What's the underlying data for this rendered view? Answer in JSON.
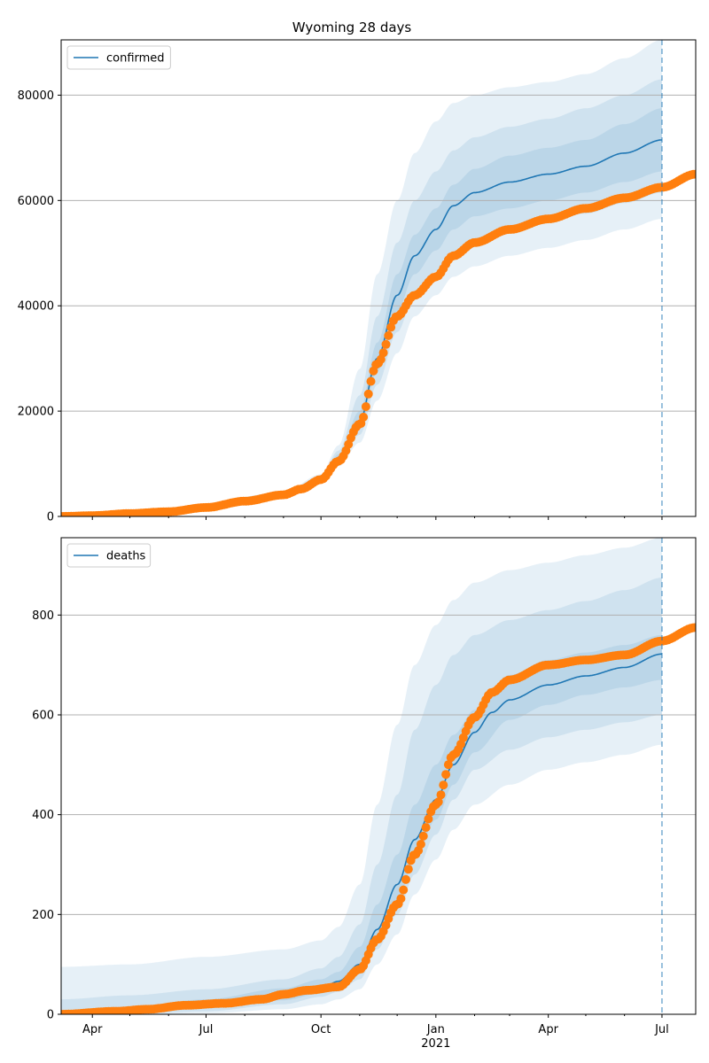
{
  "title": "Wyoming 28 days",
  "colors": {
    "model": "#1f77b4",
    "observed": "#ff7f0e",
    "band": "#1f77b4",
    "grid": "#b0b0b0"
  },
  "x_ticks": [
    {
      "label": "Apr",
      "month": 3.0
    },
    {
      "label": "Jul",
      "month": 6.0
    },
    {
      "label": "Oct",
      "month": 9.0
    },
    {
      "label": "Jan",
      "month": 12.0
    },
    {
      "label": "Apr",
      "month": 15.0
    },
    {
      "label": "Jul",
      "month": 18.0
    }
  ],
  "x_year_label": "2021",
  "chart_data": [
    {
      "type": "line",
      "name": "confirmed",
      "legend": "confirmed",
      "xlim": [
        "2020-03-07",
        "2021-07-28"
      ],
      "ylim": [
        0,
        90500
      ],
      "yticks": [
        0,
        20000,
        40000,
        60000,
        80000
      ],
      "grid": "horizontal",
      "legend_position": "top-left",
      "vline": "2021-07-01",
      "series": [
        {
          "name": "confirmed",
          "kind": "model_median",
          "points": [
            [
              "2020-03-07",
              0
            ],
            [
              "2020-05-01",
              500
            ],
            [
              "2020-06-01",
              1000
            ],
            [
              "2020-07-01",
              1800
            ],
            [
              "2020-08-01",
              3000
            ],
            [
              "2020-09-01",
              4200
            ],
            [
              "2020-09-15",
              5500
            ],
            [
              "2020-10-01",
              7300
            ],
            [
              "2020-10-15",
              11000
            ],
            [
              "2020-11-01",
              18000
            ],
            [
              "2020-11-15",
              30000
            ],
            [
              "2020-12-01",
              42000
            ],
            [
              "2020-12-15",
              49500
            ],
            [
              "2021-01-01",
              54500
            ],
            [
              "2021-01-15",
              59000
            ],
            [
              "2021-02-01",
              61500
            ],
            [
              "2021-03-01",
              63500
            ],
            [
              "2021-04-01",
              65000
            ],
            [
              "2021-05-01",
              66500
            ],
            [
              "2021-06-01",
              69000
            ],
            [
              "2021-07-01",
              71500
            ]
          ]
        },
        {
          "name": "observed confirmed",
          "kind": "observed",
          "points": [
            [
              "2020-03-07",
              0
            ],
            [
              "2020-04-01",
              150
            ],
            [
              "2020-05-01",
              550
            ],
            [
              "2020-06-01",
              900
            ],
            [
              "2020-07-01",
              1700
            ],
            [
              "2020-08-01",
              2900
            ],
            [
              "2020-09-01",
              4100
            ],
            [
              "2020-09-15",
              5200
            ],
            [
              "2020-10-01",
              7000
            ],
            [
              "2020-10-15",
              10500
            ],
            [
              "2020-11-01",
              17500
            ],
            [
              "2020-11-15",
              29000
            ],
            [
              "2020-12-01",
              38000
            ],
            [
              "2020-12-15",
              42000
            ],
            [
              "2021-01-01",
              45500
            ],
            [
              "2021-01-15",
              49500
            ],
            [
              "2021-02-01",
              52000
            ],
            [
              "2021-03-01",
              54500
            ],
            [
              "2021-04-01",
              56500
            ],
            [
              "2021-05-01",
              58500
            ],
            [
              "2021-06-01",
              60500
            ],
            [
              "2021-07-01",
              62500
            ],
            [
              "2021-07-28",
              65000
            ]
          ]
        }
      ],
      "bands": [
        {
          "level": "outer",
          "points": [
            [
              "2020-03-07",
              0,
              0
            ],
            [
              "2020-06-01",
              900,
              1100
            ],
            [
              "2020-09-01",
              3800,
              4600
            ],
            [
              "2020-10-01",
              6800,
              8000
            ],
            [
              "2020-10-15",
              9500,
              13500
            ],
            [
              "2020-11-01",
              14000,
              28000
            ],
            [
              "2020-11-15",
              22000,
              46000
            ],
            [
              "2020-12-01",
              31000,
              60000
            ],
            [
              "2020-12-15",
              38000,
              69000
            ],
            [
              "2021-01-01",
              42000,
              75000
            ],
            [
              "2021-01-15",
              45500,
              78500
            ],
            [
              "2021-02-01",
              47500,
              80000
            ],
            [
              "2021-03-01",
              49500,
              81500
            ],
            [
              "2021-04-01",
              51000,
              82500
            ],
            [
              "2021-05-01",
              52500,
              84000
            ],
            [
              "2021-06-01",
              54500,
              87000
            ],
            [
              "2021-07-01",
              56500,
              90500
            ]
          ]
        },
        {
          "level": "middle",
          "points": [
            [
              "2020-03-07",
              0,
              0
            ],
            [
              "2020-06-01",
              950,
              1050
            ],
            [
              "2020-09-01",
              4000,
              4400
            ],
            [
              "2020-10-01",
              7000,
              7700
            ],
            [
              "2020-10-15",
              10000,
              12500
            ],
            [
              "2020-11-01",
              15500,
              23000
            ],
            [
              "2020-11-15",
              25000,
              38000
            ],
            [
              "2020-12-01",
              35000,
              52000
            ],
            [
              "2020-12-15",
              42000,
              60000
            ],
            [
              "2021-01-01",
              46500,
              65500
            ],
            [
              "2021-01-15",
              50000,
              69500
            ],
            [
              "2021-02-01",
              52500,
              72000
            ],
            [
              "2021-03-01",
              54500,
              74000
            ],
            [
              "2021-04-01",
              56000,
              75500
            ],
            [
              "2021-05-01",
              57500,
              77500
            ],
            [
              "2021-06-01",
              59500,
              80000
            ],
            [
              "2021-07-01",
              61500,
              83000
            ]
          ]
        },
        {
          "level": "inner",
          "points": [
            [
              "2020-03-07",
              0,
              0
            ],
            [
              "2020-06-01",
              980,
              1020
            ],
            [
              "2020-09-01",
              4100,
              4300
            ],
            [
              "2020-10-01",
              7100,
              7500
            ],
            [
              "2020-10-15",
              10500,
              11800
            ],
            [
              "2020-11-01",
              16800,
              20000
            ],
            [
              "2020-11-15",
              27500,
              33000
            ],
            [
              "2020-12-01",
              39000,
              46000
            ],
            [
              "2020-12-15",
              46000,
              53500
            ],
            [
              "2021-01-01",
              50500,
              58500
            ],
            [
              "2021-01-15",
              54500,
              63000
            ],
            [
              "2021-02-01",
              57000,
              66000
            ],
            [
              "2021-03-01",
              58500,
              68500
            ],
            [
              "2021-04-01",
              60000,
              70000
            ],
            [
              "2021-05-01",
              61500,
              71500
            ],
            [
              "2021-06-01",
              63500,
              74500
            ],
            [
              "2021-07-01",
              65500,
              77500
            ]
          ]
        }
      ]
    },
    {
      "type": "line",
      "name": "deaths",
      "legend": "deaths",
      "xlim": [
        "2020-03-07",
        "2021-07-28"
      ],
      "ylim": [
        0,
        955
      ],
      "yticks": [
        0,
        200,
        400,
        600,
        800
      ],
      "grid": "horizontal",
      "legend_position": "top-left",
      "vline": "2021-07-01",
      "series": [
        {
          "name": "deaths",
          "kind": "model_median",
          "points": [
            [
              "2020-03-07",
              0
            ],
            [
              "2020-04-15",
              5
            ],
            [
              "2020-06-01",
              15
            ],
            [
              "2020-07-01",
              20
            ],
            [
              "2020-08-01",
              27
            ],
            [
              "2020-09-01",
              38
            ],
            [
              "2020-10-01",
              52
            ],
            [
              "2020-10-15",
              66
            ],
            [
              "2020-11-01",
              100
            ],
            [
              "2020-11-15",
              170
            ],
            [
              "2020-12-01",
              260
            ],
            [
              "2020-12-15",
              350
            ],
            [
              "2021-01-01",
              430
            ],
            [
              "2021-01-15",
              500
            ],
            [
              "2021-02-01",
              565
            ],
            [
              "2021-02-15",
              605
            ],
            [
              "2021-03-01",
              630
            ],
            [
              "2021-04-01",
              660
            ],
            [
              "2021-05-01",
              678
            ],
            [
              "2021-06-01",
              695
            ],
            [
              "2021-07-01",
              722
            ]
          ]
        },
        {
          "name": "observed deaths",
          "kind": "observed",
          "points": [
            [
              "2020-03-07",
              0
            ],
            [
              "2020-04-20",
              6
            ],
            [
              "2020-05-15",
              10
            ],
            [
              "2020-06-15",
              18
            ],
            [
              "2020-07-15",
              22
            ],
            [
              "2020-08-15",
              30
            ],
            [
              "2020-09-01",
              40
            ],
            [
              "2020-09-20",
              48
            ],
            [
              "2020-10-15",
              55
            ],
            [
              "2020-11-01",
              90
            ],
            [
              "2020-11-15",
              150
            ],
            [
              "2020-12-01",
              220
            ],
            [
              "2020-12-15",
              320
            ],
            [
              "2021-01-01",
              420
            ],
            [
              "2021-01-15",
              520
            ],
            [
              "2021-02-01",
              595
            ],
            [
              "2021-02-15",
              645
            ],
            [
              "2021-03-01",
              670
            ],
            [
              "2021-04-01",
              700
            ],
            [
              "2021-05-01",
              710
            ],
            [
              "2021-06-01",
              720
            ],
            [
              "2021-07-01",
              748
            ],
            [
              "2021-07-28",
              775
            ]
          ]
        }
      ],
      "bands": [
        {
          "level": "outer",
          "points": [
            [
              "2020-03-07",
              0,
              95
            ],
            [
              "2020-05-01",
              0,
              100
            ],
            [
              "2020-07-01",
              2,
              115
            ],
            [
              "2020-09-01",
              10,
              130
            ],
            [
              "2020-10-01",
              20,
              148
            ],
            [
              "2020-10-15",
              30,
              175
            ],
            [
              "2020-11-01",
              50,
              260
            ],
            [
              "2020-11-15",
              100,
              420
            ],
            [
              "2020-12-01",
              160,
              580
            ],
            [
              "2020-12-15",
              240,
              700
            ],
            [
              "2021-01-01",
              310,
              780
            ],
            [
              "2021-01-15",
              370,
              830
            ],
            [
              "2021-02-01",
              420,
              865
            ],
            [
              "2021-03-01",
              460,
              890
            ],
            [
              "2021-04-01",
              490,
              905
            ],
            [
              "2021-05-01",
              505,
              920
            ],
            [
              "2021-06-01",
              520,
              935
            ],
            [
              "2021-07-01",
              540,
              955
            ]
          ]
        },
        {
          "level": "middle",
          "points": [
            [
              "2020-03-07",
              0,
              30
            ],
            [
              "2020-05-01",
              0,
              38
            ],
            [
              "2020-07-01",
              6,
              50
            ],
            [
              "2020-09-01",
              20,
              70
            ],
            [
              "2020-10-01",
              35,
              92
            ],
            [
              "2020-10-15",
              45,
              115
            ],
            [
              "2020-11-01",
              70,
              180
            ],
            [
              "2020-11-15",
              130,
              300
            ],
            [
              "2020-12-01",
              200,
              440
            ],
            [
              "2020-12-15",
              280,
              570
            ],
            [
              "2021-01-01",
              360,
              660
            ],
            [
              "2021-01-15",
              430,
              720
            ],
            [
              "2021-02-01",
              490,
              760
            ],
            [
              "2021-03-01",
              530,
              790
            ],
            [
              "2021-04-01",
              555,
              810
            ],
            [
              "2021-05-01",
              570,
              828
            ],
            [
              "2021-06-01",
              585,
              850
            ],
            [
              "2021-07-01",
              600,
              875
            ]
          ]
        },
        {
          "level": "inner",
          "points": [
            [
              "2020-03-07",
              0,
              8
            ],
            [
              "2020-05-01",
              2,
              14
            ],
            [
              "2020-07-01",
              12,
              30
            ],
            [
              "2020-09-01",
              28,
              52
            ],
            [
              "2020-10-01",
              42,
              70
            ],
            [
              "2020-10-15",
              55,
              85
            ],
            [
              "2020-11-01",
              82,
              135
            ],
            [
              "2020-11-15",
              145,
              220
            ],
            [
              "2020-12-01",
              225,
              320
            ],
            [
              "2020-12-15",
              310,
              420
            ],
            [
              "2021-01-01",
              390,
              500
            ],
            [
              "2021-01-15",
              460,
              560
            ],
            [
              "2021-02-01",
              525,
              610
            ],
            [
              "2021-03-01",
              590,
              680
            ],
            [
              "2021-04-01",
              620,
              710
            ],
            [
              "2021-05-01",
              640,
              725
            ],
            [
              "2021-06-01",
              655,
              740
            ],
            [
              "2021-07-01",
              670,
              760
            ]
          ]
        }
      ]
    }
  ]
}
